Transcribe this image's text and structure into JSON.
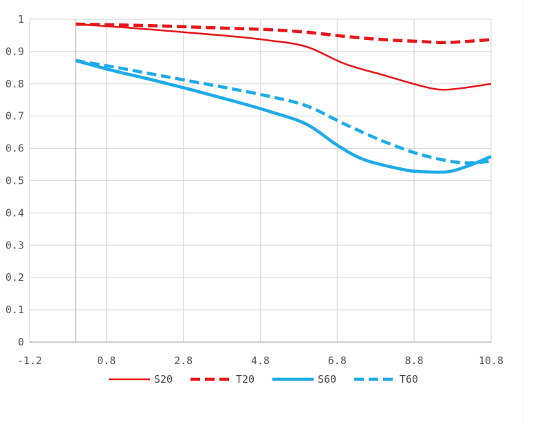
{
  "chart_data": {
    "type": "line",
    "title": "",
    "xlabel": "",
    "ylabel": "",
    "xlim": [
      -1.2,
      10.8
    ],
    "ylim": [
      0,
      1
    ],
    "x_ticks": [
      "-1.2",
      "0.8",
      "2.8",
      "4.8",
      "6.8",
      "8.8",
      "10.8"
    ],
    "y_ticks": [
      "0",
      "0.1",
      "0.2",
      "0.3",
      "0.4",
      "0.5",
      "0.6",
      "0.7",
      "0.8",
      "0.9",
      "1"
    ],
    "grid": true,
    "legend_position": "bottom",
    "series": [
      {
        "name": "S20",
        "color": "#e8161b",
        "style": "solid",
        "width": "thin",
        "points": [
          [
            0,
            0.985
          ],
          [
            1,
            0.977
          ],
          [
            2,
            0.968
          ],
          [
            3,
            0.958
          ],
          [
            4,
            0.948
          ],
          [
            5,
            0.935
          ],
          [
            6,
            0.915
          ],
          [
            7,
            0.862
          ],
          [
            8,
            0.827
          ],
          [
            9,
            0.793
          ],
          [
            9.5,
            0.782
          ],
          [
            10,
            0.786
          ],
          [
            10.8,
            0.8
          ]
        ]
      },
      {
        "name": "T20",
        "color": "#e8161b",
        "style": "dashed",
        "width": "thick",
        "points": [
          [
            0,
            0.985
          ],
          [
            2,
            0.98
          ],
          [
            4,
            0.972
          ],
          [
            5,
            0.968
          ],
          [
            6,
            0.96
          ],
          [
            7,
            0.947
          ],
          [
            8,
            0.937
          ],
          [
            9,
            0.931
          ],
          [
            9.5,
            0.928
          ],
          [
            10,
            0.93
          ],
          [
            10.8,
            0.937
          ]
        ]
      },
      {
        "name": "S60",
        "color": "#1eabe8",
        "style": "solid",
        "width": "thick",
        "points": [
          [
            0,
            0.872
          ],
          [
            1,
            0.84
          ],
          [
            2,
            0.812
          ],
          [
            3,
            0.782
          ],
          [
            4,
            0.75
          ],
          [
            5,
            0.716
          ],
          [
            6,
            0.675
          ],
          [
            6.8,
            0.61
          ],
          [
            7.5,
            0.565
          ],
          [
            8.5,
            0.535
          ],
          [
            9,
            0.528
          ],
          [
            9.7,
            0.528
          ],
          [
            10.3,
            0.55
          ],
          [
            10.8,
            0.575
          ]
        ]
      },
      {
        "name": "T60",
        "color": "#1eabe8",
        "style": "dashed",
        "width": "thick",
        "points": [
          [
            0,
            0.872
          ],
          [
            1,
            0.852
          ],
          [
            2,
            0.83
          ],
          [
            3,
            0.808
          ],
          [
            4,
            0.786
          ],
          [
            5,
            0.762
          ],
          [
            6,
            0.732
          ],
          [
            7,
            0.675
          ],
          [
            8,
            0.622
          ],
          [
            9,
            0.58
          ],
          [
            10,
            0.556
          ],
          [
            10.8,
            0.56
          ]
        ]
      }
    ]
  }
}
